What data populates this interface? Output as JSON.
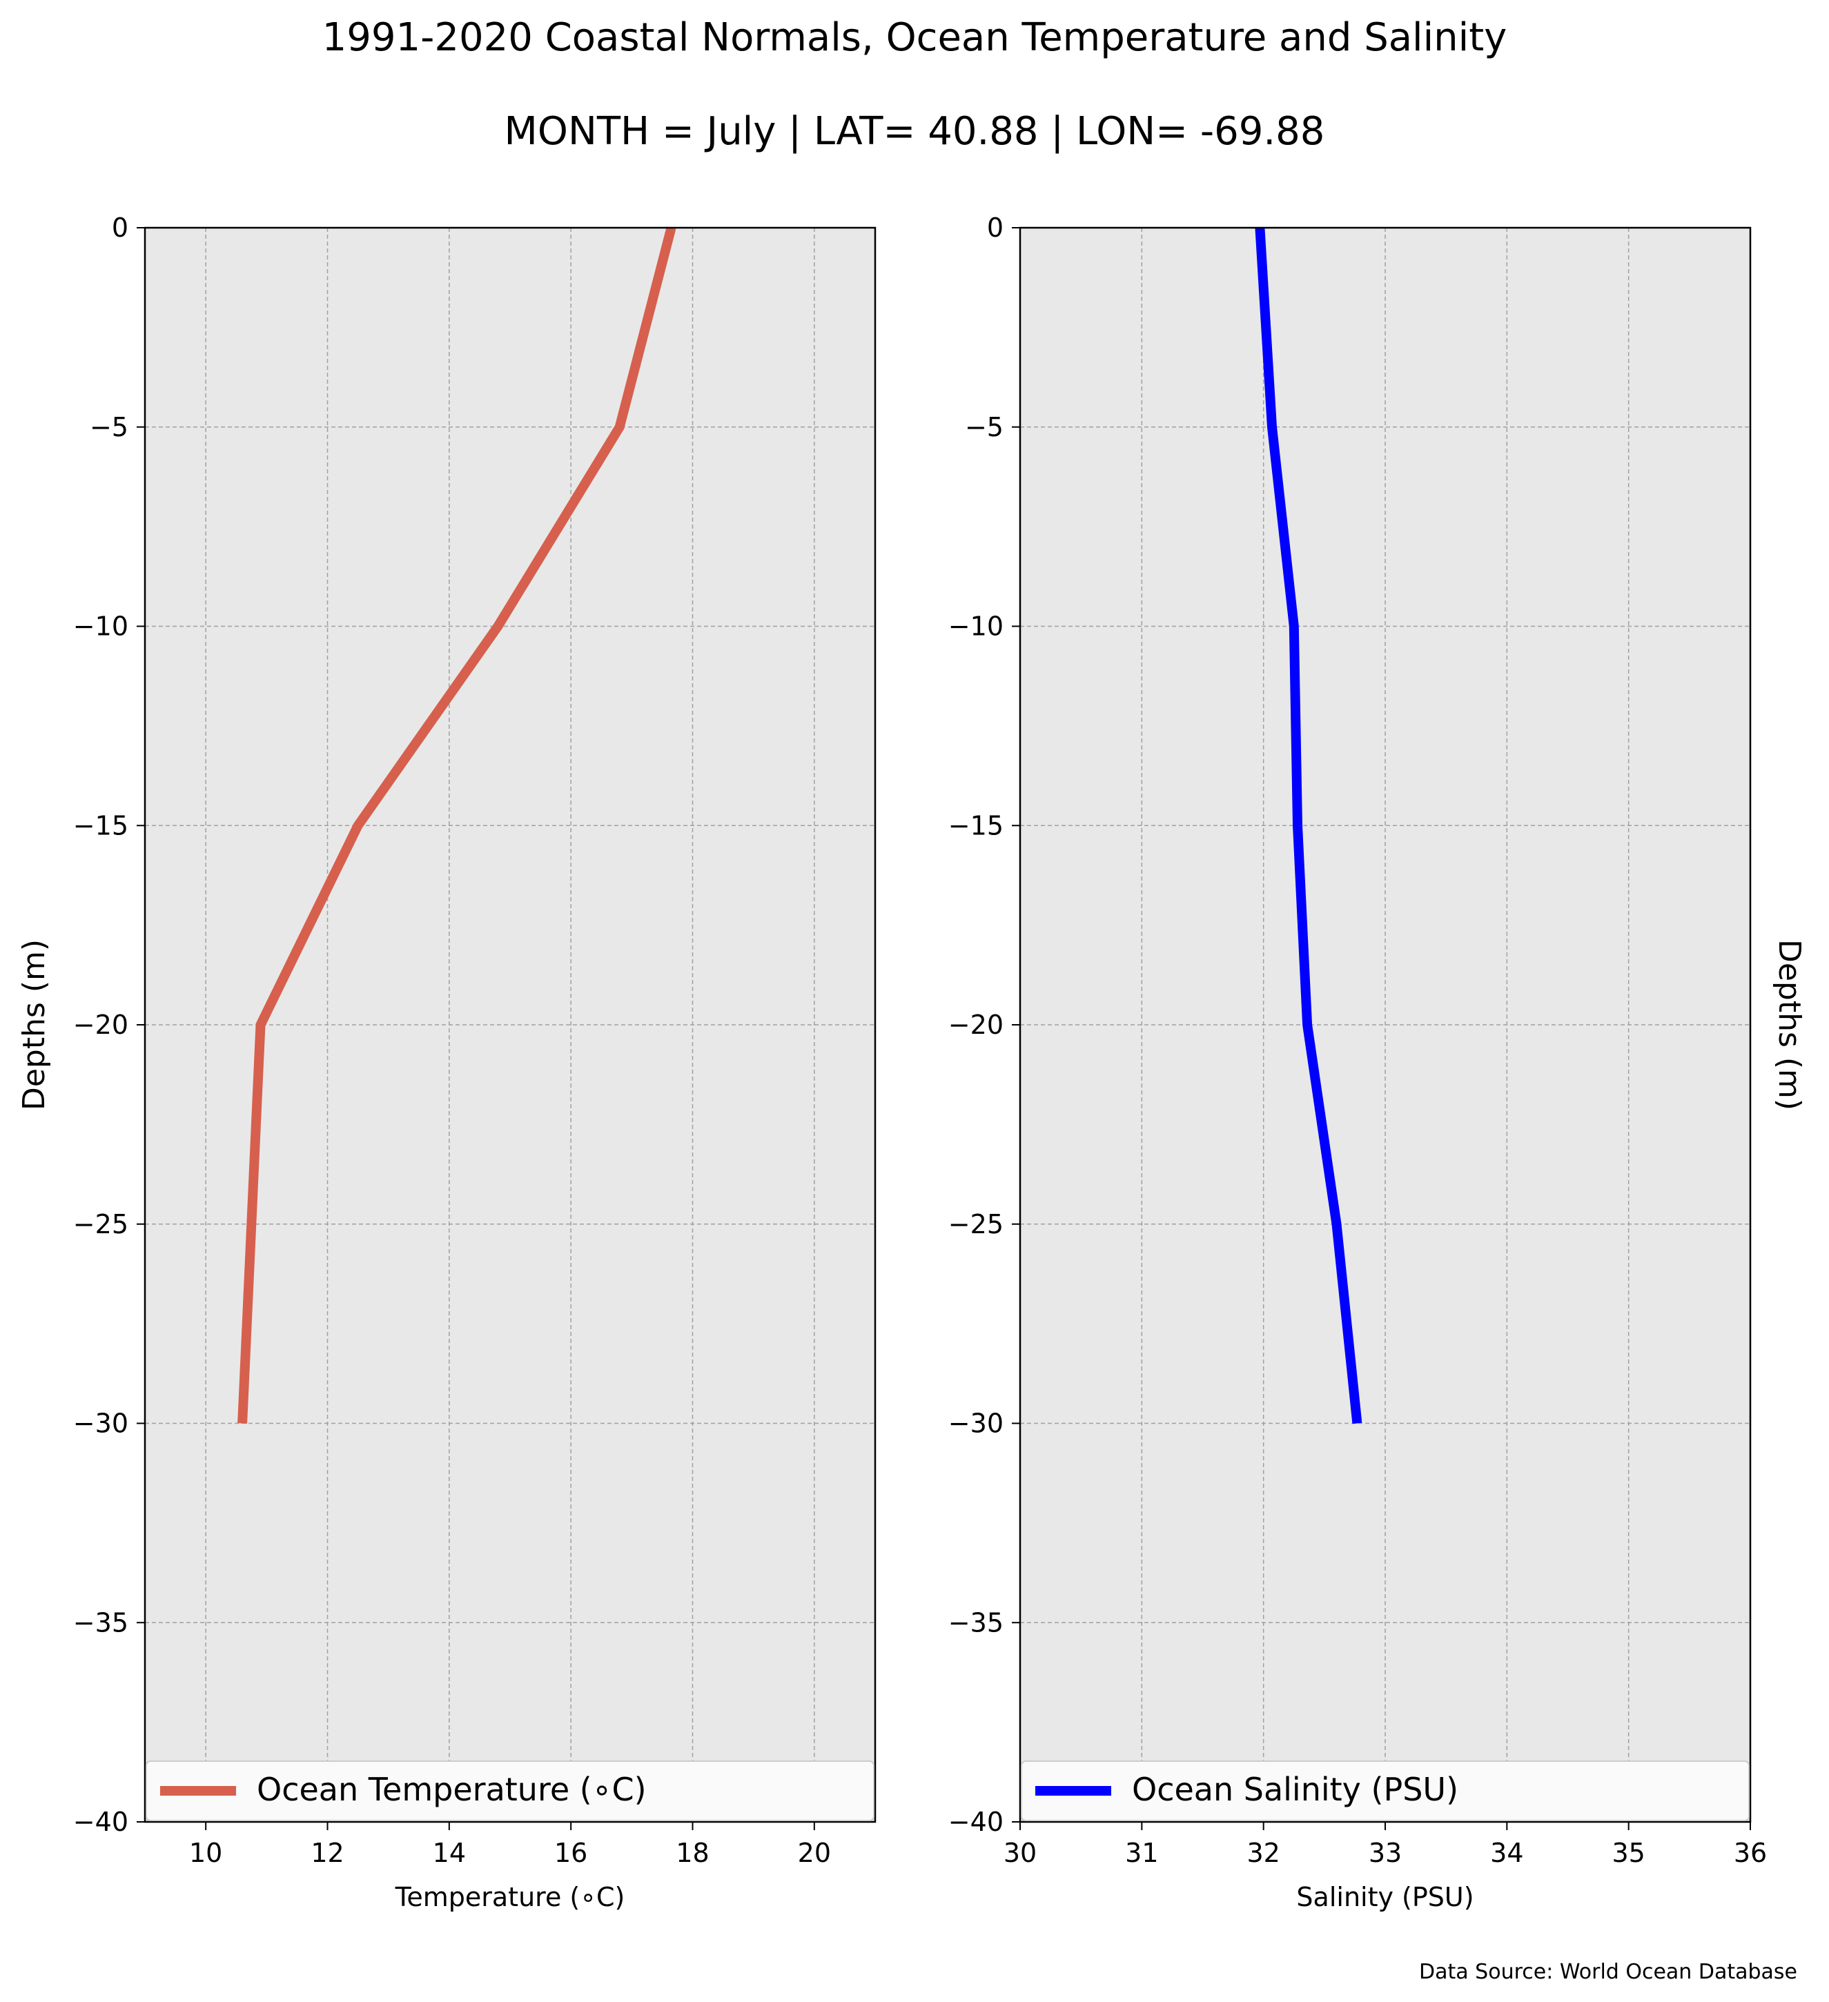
{
  "figure": {
    "title": "1991-2020 Coastal Normals, Ocean Temperature and Salinity",
    "subtitle": "MONTH = July | LAT= 40.88 | LON= -69.88",
    "source_note": "Data Source: World Ocean Database"
  },
  "chart_data": [
    {
      "type": "line",
      "orientation": "vertical-profile",
      "xlabel": "Temperature ($^\\circ$C)",
      "xlabel_display": "Temperature (∘C)",
      "ylabel": "Depths (m)",
      "xlim": [
        9,
        21
      ],
      "ylim": [
        -40,
        0
      ],
      "xticks": [
        10,
        12,
        14,
        16,
        18,
        20
      ],
      "xtick_labels": [
        "10",
        "12",
        "14",
        "16",
        "18",
        "20"
      ],
      "yticks": [
        0,
        -5,
        -10,
        -15,
        -20,
        -25,
        -30,
        -35,
        -40
      ],
      "ytick_labels": [
        "0",
        "−5",
        "−10",
        "−15",
        "−20",
        "−25",
        "−30",
        "−35",
        "−40"
      ],
      "grid": true,
      "legend_position": "bottom",
      "series": [
        {
          "name": "Ocean Temperature (∘C)",
          "color": "#d6604d",
          "x": [
            17.65,
            16.8,
            14.8,
            12.5,
            10.9,
            10.75,
            10.6
          ],
          "y": [
            0,
            -5,
            -10,
            -15,
            -20,
            -25,
            -30
          ]
        }
      ]
    },
    {
      "type": "line",
      "orientation": "vertical-profile",
      "xlabel": "Salinity (PSU)",
      "ylabel": "Depths (m)",
      "ylabel_side": "right",
      "xlim": [
        30,
        36
      ],
      "ylim": [
        -40,
        0
      ],
      "xticks": [
        30,
        31,
        32,
        33,
        34,
        35,
        36
      ],
      "xtick_labels": [
        "30",
        "31",
        "32",
        "33",
        "34",
        "35",
        "36"
      ],
      "yticks": [
        0,
        -5,
        -10,
        -15,
        -20,
        -25,
        -30,
        -35,
        -40
      ],
      "ytick_labels": [
        "0",
        "−5",
        "−10",
        "−15",
        "−20",
        "−25",
        "−30",
        "−35",
        "−40"
      ],
      "grid": true,
      "legend_position": "bottom",
      "series": [
        {
          "name": "Ocean Salinity (PSU)",
          "color": "#0000ff",
          "x": [
            31.97,
            32.07,
            32.25,
            32.28,
            32.36,
            32.6,
            32.77
          ],
          "y": [
            0,
            -5,
            -10,
            -15,
            -20,
            -25,
            -30
          ]
        }
      ]
    }
  ]
}
